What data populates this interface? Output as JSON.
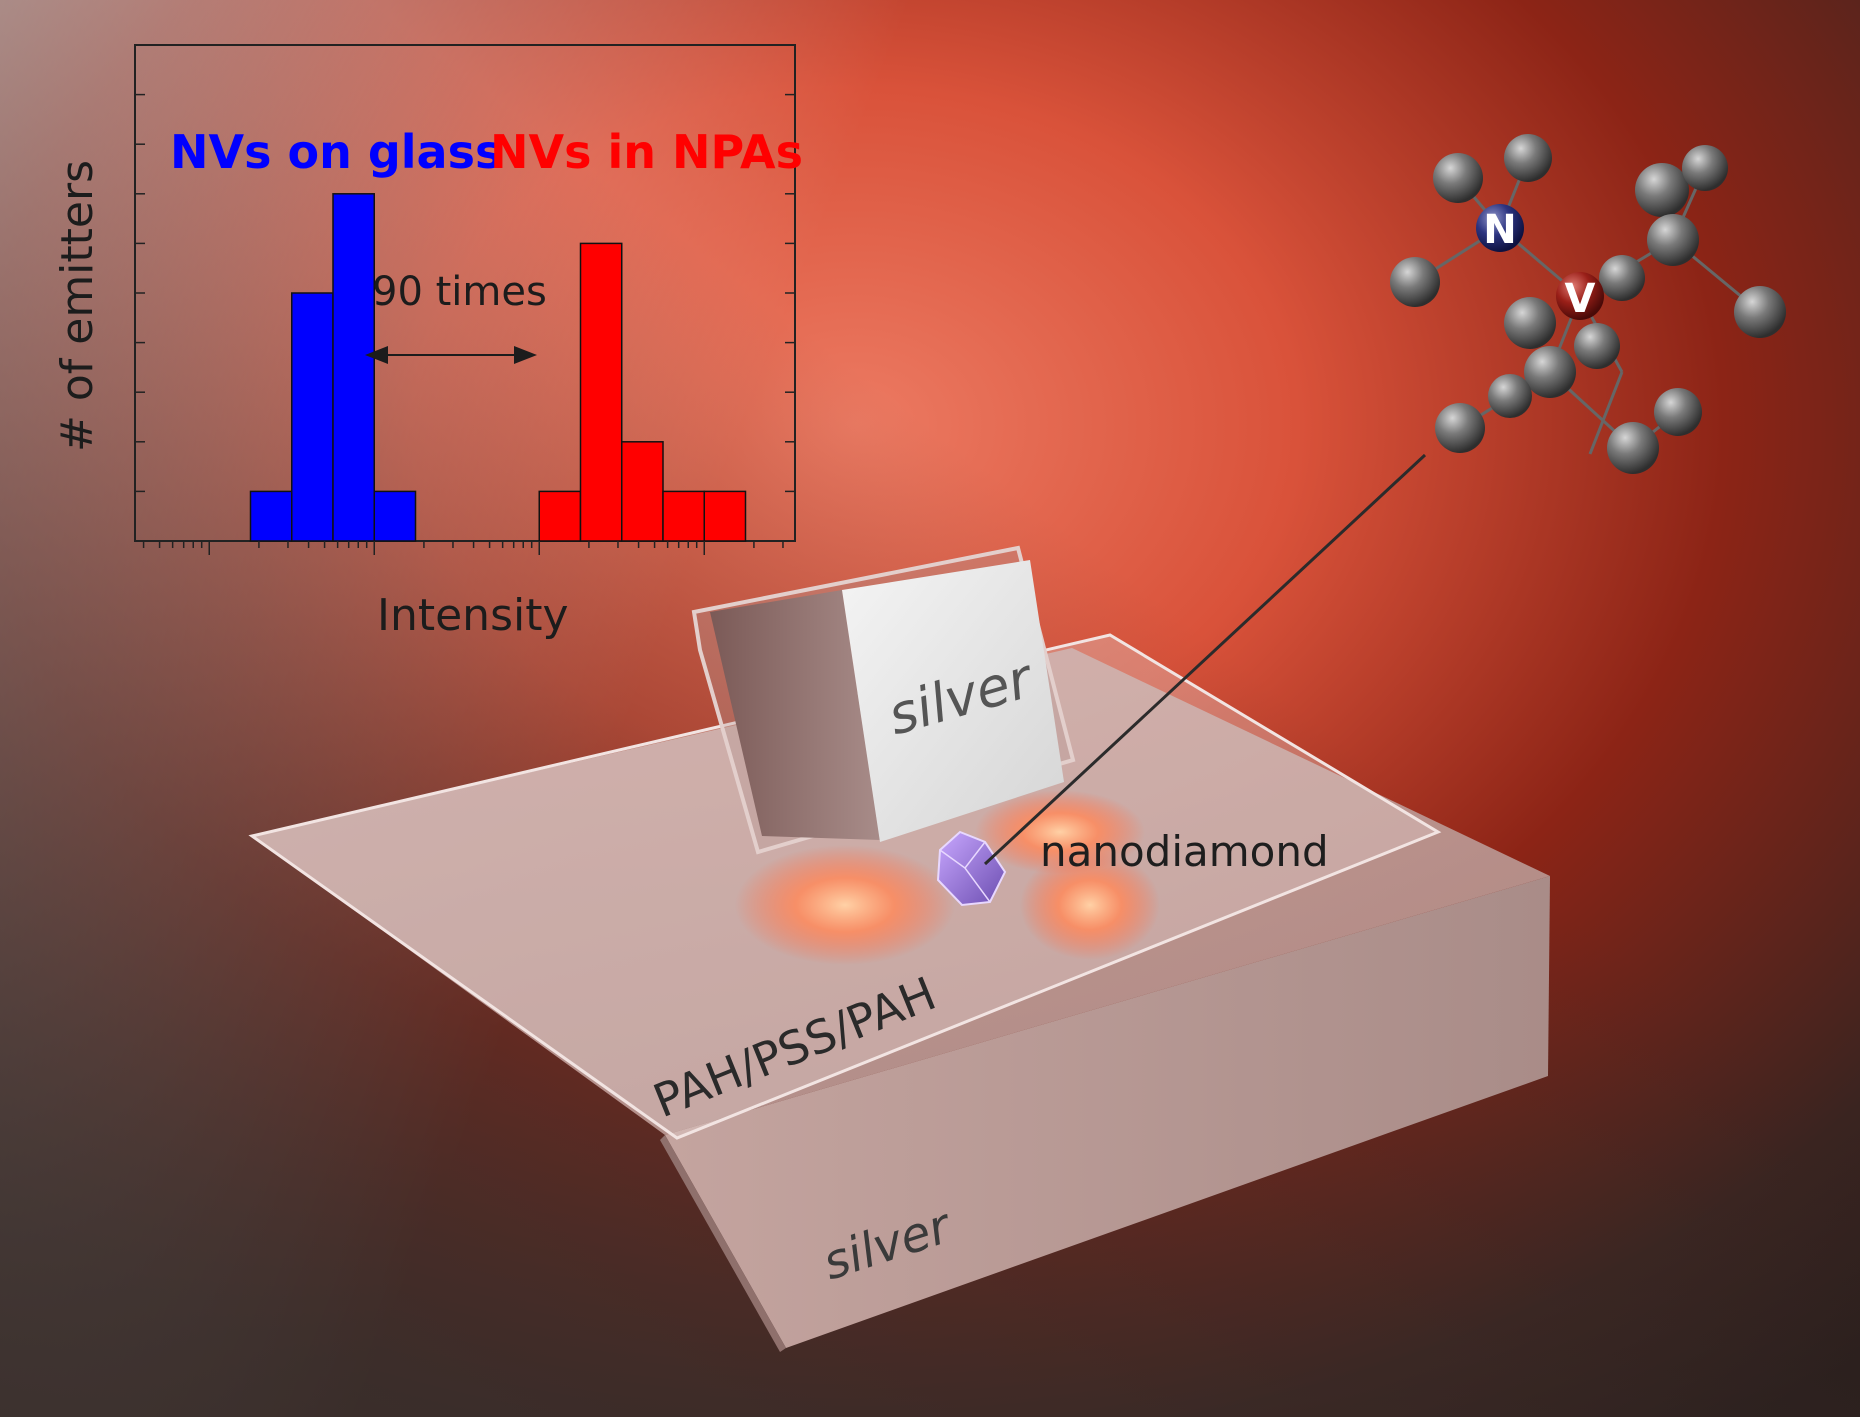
{
  "figure": {
    "labels": {
      "top_cube": "silver",
      "base_block": "silver",
      "layer": "PAH/PSS/PAH",
      "particle": "nanodiamond"
    },
    "molecule": {
      "nitrogen_label": "N",
      "vacancy_label": "V"
    },
    "colors": {
      "glass_series": "#0000ff",
      "npa_series": "#ff0000",
      "background_glow": "#d9523a",
      "background_dark": "#2a1e1c"
    }
  },
  "inset_chart": {
    "ylabel": "# of emitters",
    "xlabel": "Intensity",
    "annotation": "90 times"
  },
  "chart_data": {
    "type": "bar",
    "xlabel": "Intensity",
    "ylabel": "# of emitters",
    "x_scale": "log",
    "ylim": [
      0,
      10
    ],
    "annotations": [
      "90 times"
    ],
    "series": [
      {
        "name": "NVs on glass",
        "color": "#0000ff",
        "bin_edges_decades": [
          -0.75,
          -0.5,
          -0.25,
          0.0,
          0.25
        ],
        "values": [
          1,
          5,
          7,
          1
        ]
      },
      {
        "name": "NVs in NPAs",
        "color": "#ff0000",
        "bin_edges_decades": [
          1.0,
          1.25,
          1.5,
          1.75,
          2.0,
          2.25
        ],
        "values": [
          1,
          6,
          2,
          1,
          1
        ]
      }
    ]
  }
}
